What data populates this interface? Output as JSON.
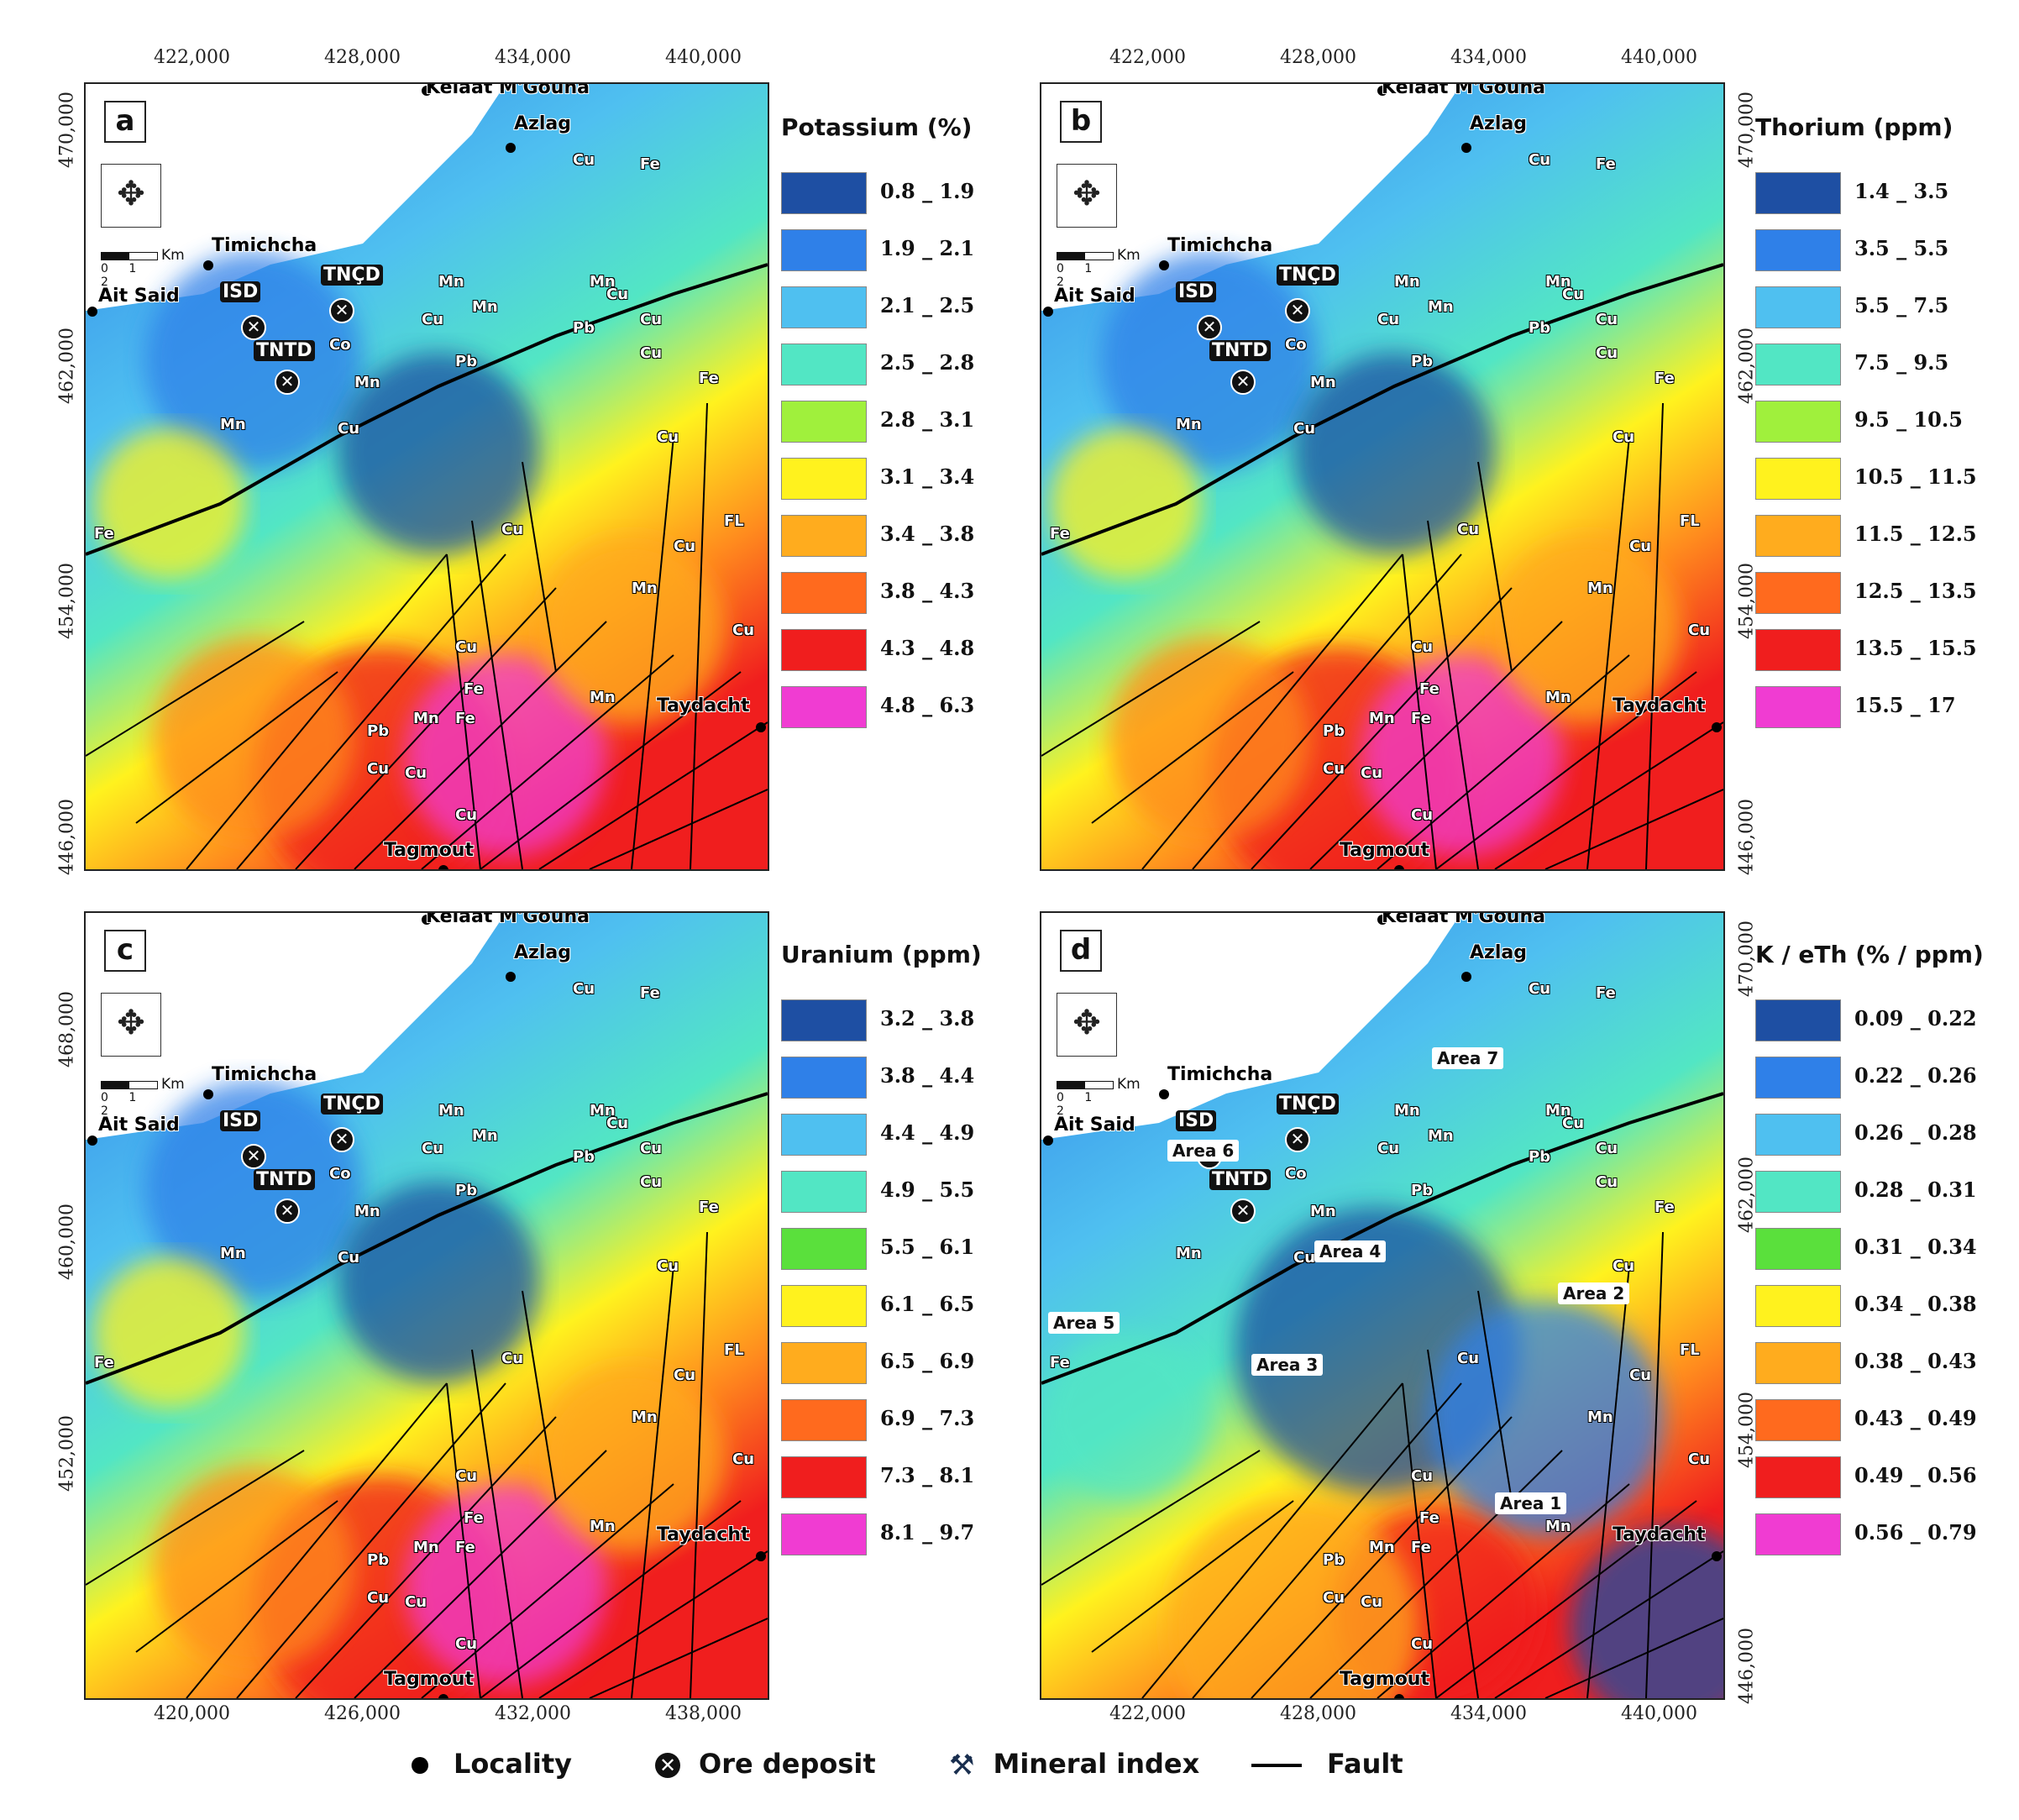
{
  "panels": {
    "a": {
      "letter": "a",
      "legend_title": "Potassium (%)",
      "classes": [
        {
          "label": "0.8 _ 1.9",
          "color": "#1e4fa3"
        },
        {
          "label": "1.9 _ 2.1",
          "color": "#2f80e8"
        },
        {
          "label": "2.1 _ 2.5",
          "color": "#4fc0f0"
        },
        {
          "label": "2.5 _ 2.8",
          "color": "#52e6c4"
        },
        {
          "label": "2.8 _ 3.1",
          "color": "#a0f03c"
        },
        {
          "label": "3.1 _ 3.4",
          "color": "#fff21e"
        },
        {
          "label": "3.4 _ 3.8",
          "color": "#ffac1e"
        },
        {
          "label": "3.8 _ 4.3",
          "color": "#ff6a1e"
        },
        {
          "label": "4.3 _ 4.8",
          "color": "#f01e1e"
        },
        {
          "label": "4.8 _ 6.3",
          "color": "#f03cd2"
        }
      ],
      "x_ticks": [
        "422,000",
        "428,000",
        "434,000",
        "440,000"
      ],
      "y_ticks": [
        "470,000",
        "462,000",
        "454,000",
        "446,000"
      ],
      "areas": []
    },
    "b": {
      "letter": "b",
      "legend_title": "Thorium (ppm)",
      "classes": [
        {
          "label": "1.4 _ 3.5",
          "color": "#1e4fa3"
        },
        {
          "label": "3.5 _ 5.5",
          "color": "#2f80e8"
        },
        {
          "label": "5.5 _ 7.5",
          "color": "#4fc0f0"
        },
        {
          "label": "7.5 _ 9.5",
          "color": "#52e6c4"
        },
        {
          "label": "9.5 _ 10.5",
          "color": "#a0f03c"
        },
        {
          "label": "10.5 _ 11.5",
          "color": "#fff21e"
        },
        {
          "label": "11.5 _ 12.5",
          "color": "#ffac1e"
        },
        {
          "label": "12.5 _ 13.5",
          "color": "#ff6a1e"
        },
        {
          "label": "13.5 _ 15.5",
          "color": "#f01e1e"
        },
        {
          "label": "15.5 _ 17",
          "color": "#f03cd2"
        }
      ],
      "x_ticks": [
        "422,000",
        "428,000",
        "434,000",
        "440,000"
      ],
      "y_ticks": [
        "470,000",
        "462,000",
        "454,000",
        "446,000"
      ],
      "areas": []
    },
    "c": {
      "letter": "c",
      "legend_title": "Uranium (ppm)",
      "classes": [
        {
          "label": "3.2 _ 3.8",
          "color": "#1e4fa3"
        },
        {
          "label": "3.8 _ 4.4",
          "color": "#2f80e8"
        },
        {
          "label": "4.4 _ 4.9",
          "color": "#4fc0f0"
        },
        {
          "label": "4.9 _ 5.5",
          "color": "#52e6c4"
        },
        {
          "label": "5.5 _ 6.1",
          "color": "#5ae03c"
        },
        {
          "label": "6.1 _ 6.5",
          "color": "#fff21e"
        },
        {
          "label": "6.5 _ 6.9",
          "color": "#ffac1e"
        },
        {
          "label": "6.9 _ 7.3",
          "color": "#ff6a1e"
        },
        {
          "label": "7.3 _ 8.1",
          "color": "#f01e1e"
        },
        {
          "label": "8.1 _ 9.7",
          "color": "#f03cd2"
        }
      ],
      "x_ticks": [
        "420,000",
        "426,000",
        "432,000",
        "438,000"
      ],
      "y_ticks": [
        "468,000",
        "460,000",
        "452,000"
      ],
      "areas": []
    },
    "d": {
      "letter": "d",
      "legend_title": "K / eTh (% / ppm)",
      "classes": [
        {
          "label": "0.09 _ 0.22",
          "color": "#1e4fa3"
        },
        {
          "label": "0.22 _ 0.26",
          "color": "#2f80e8"
        },
        {
          "label": "0.26 _ 0.28",
          "color": "#4fc0f0"
        },
        {
          "label": "0.28 _ 0.31",
          "color": "#52e6c4"
        },
        {
          "label": "0.31 _ 0.34",
          "color": "#5ae03c"
        },
        {
          "label": "0.34 _ 0.38",
          "color": "#fff21e"
        },
        {
          "label": "0.38 _ 0.43",
          "color": "#ffac1e"
        },
        {
          "label": "0.43 _ 0.49",
          "color": "#ff6a1e"
        },
        {
          "label": "0.49 _ 0.56",
          "color": "#f01e1e"
        },
        {
          "label": "0.56 _ 0.79",
          "color": "#f03cd2"
        }
      ],
      "x_ticks": [
        "422,000",
        "428,000",
        "434,000",
        "440,000"
      ],
      "y_ticks": [
        "470,000",
        "462,000",
        "454,000",
        "446,000"
      ],
      "areas": [
        "Area 1",
        "Area 2",
        "Area 3",
        "Area 4",
        "Area 5",
        "Area 6",
        "Area 7"
      ]
    }
  },
  "places": {
    "kelaat": "Kelâat M'Gouna",
    "azlag": "Azlag",
    "timichcha": "Timichcha",
    "ait_said": "Ait Said",
    "taydacht": "Taydacht",
    "tagmout": "Tagmout"
  },
  "deposits": {
    "isd": "ISD",
    "tncd": "TNÇD",
    "tntd": "TNTD"
  },
  "scale_km": "Km",
  "scale_nums": "0 1 2",
  "minerals": [
    "Cu",
    "Fe",
    "Mn",
    "Pb",
    "Co",
    "FL"
  ],
  "bottom_legend": {
    "locality": "Locality",
    "ore_deposit": "Ore deposit",
    "mineral_index": "Mineral index",
    "fault": "Fault"
  }
}
